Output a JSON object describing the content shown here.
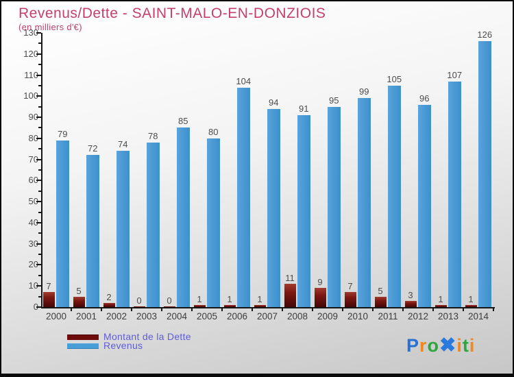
{
  "header": {
    "title": "Revenus/Dette - SAINT-MALO-EN-DONZIOIS",
    "subtitle": "(en milliers d'€)"
  },
  "chart_data": {
    "type": "bar",
    "title": "Revenus/Dette - SAINT-MALO-EN-DONZIOIS",
    "subtitle": "(en milliers d'€)",
    "categories": [
      "2000",
      "2001",
      "2002",
      "2003",
      "2004",
      "2005",
      "2006",
      "2007",
      "2008",
      "2009",
      "2010",
      "2011",
      "2012",
      "2013",
      "2014"
    ],
    "series": [
      {
        "name": "Montant de la Dette",
        "color": "#7a0d0d",
        "values": [
          7,
          5,
          2,
          0,
          0,
          1,
          1,
          1,
          11,
          9,
          7,
          5,
          3,
          1,
          1
        ]
      },
      {
        "name": "Revenus",
        "color": "#4a9ad5",
        "values": [
          79,
          72,
          74,
          78,
          85,
          80,
          104,
          94,
          91,
          95,
          99,
          105,
          96,
          107,
          126
        ]
      }
    ],
    "xlabel": "",
    "ylabel": "",
    "ylim": [
      0,
      130
    ],
    "ytick_step": 10,
    "ytick_minor_step": 5,
    "grid": false,
    "legend_position": "bottom-left",
    "data_labels": true
  },
  "legend": {
    "items": [
      {
        "label": "Montant de la Dette",
        "color": "#6e0c0c"
      },
      {
        "label": "Revenus",
        "color": "#4a9ed8"
      }
    ]
  },
  "logo": {
    "name": "Proxiti",
    "letters": [
      {
        "ch": "P",
        "color": "#2a70d2"
      },
      {
        "ch": "r",
        "color": "#f2871c"
      },
      {
        "ch": "o",
        "color": "#2fa63c"
      },
      {
        "ch": "✖",
        "color": "#2a79dd"
      },
      {
        "ch": "i",
        "color": "#f2871c"
      },
      {
        "ch": "t",
        "color": "#2fa63c"
      },
      {
        "ch": "i",
        "color": "#f2871c"
      }
    ]
  },
  "colors": {
    "title_pink": "#c43f6b",
    "axis": "#161616",
    "tick_text": "#4d4d4d",
    "bar_blue": "#4a9ad5",
    "bar_red_dark": "#440707",
    "legend_text": "#5d5dd8",
    "background_top": "#ffffff",
    "background_bottom": "#c7c7c7"
  }
}
